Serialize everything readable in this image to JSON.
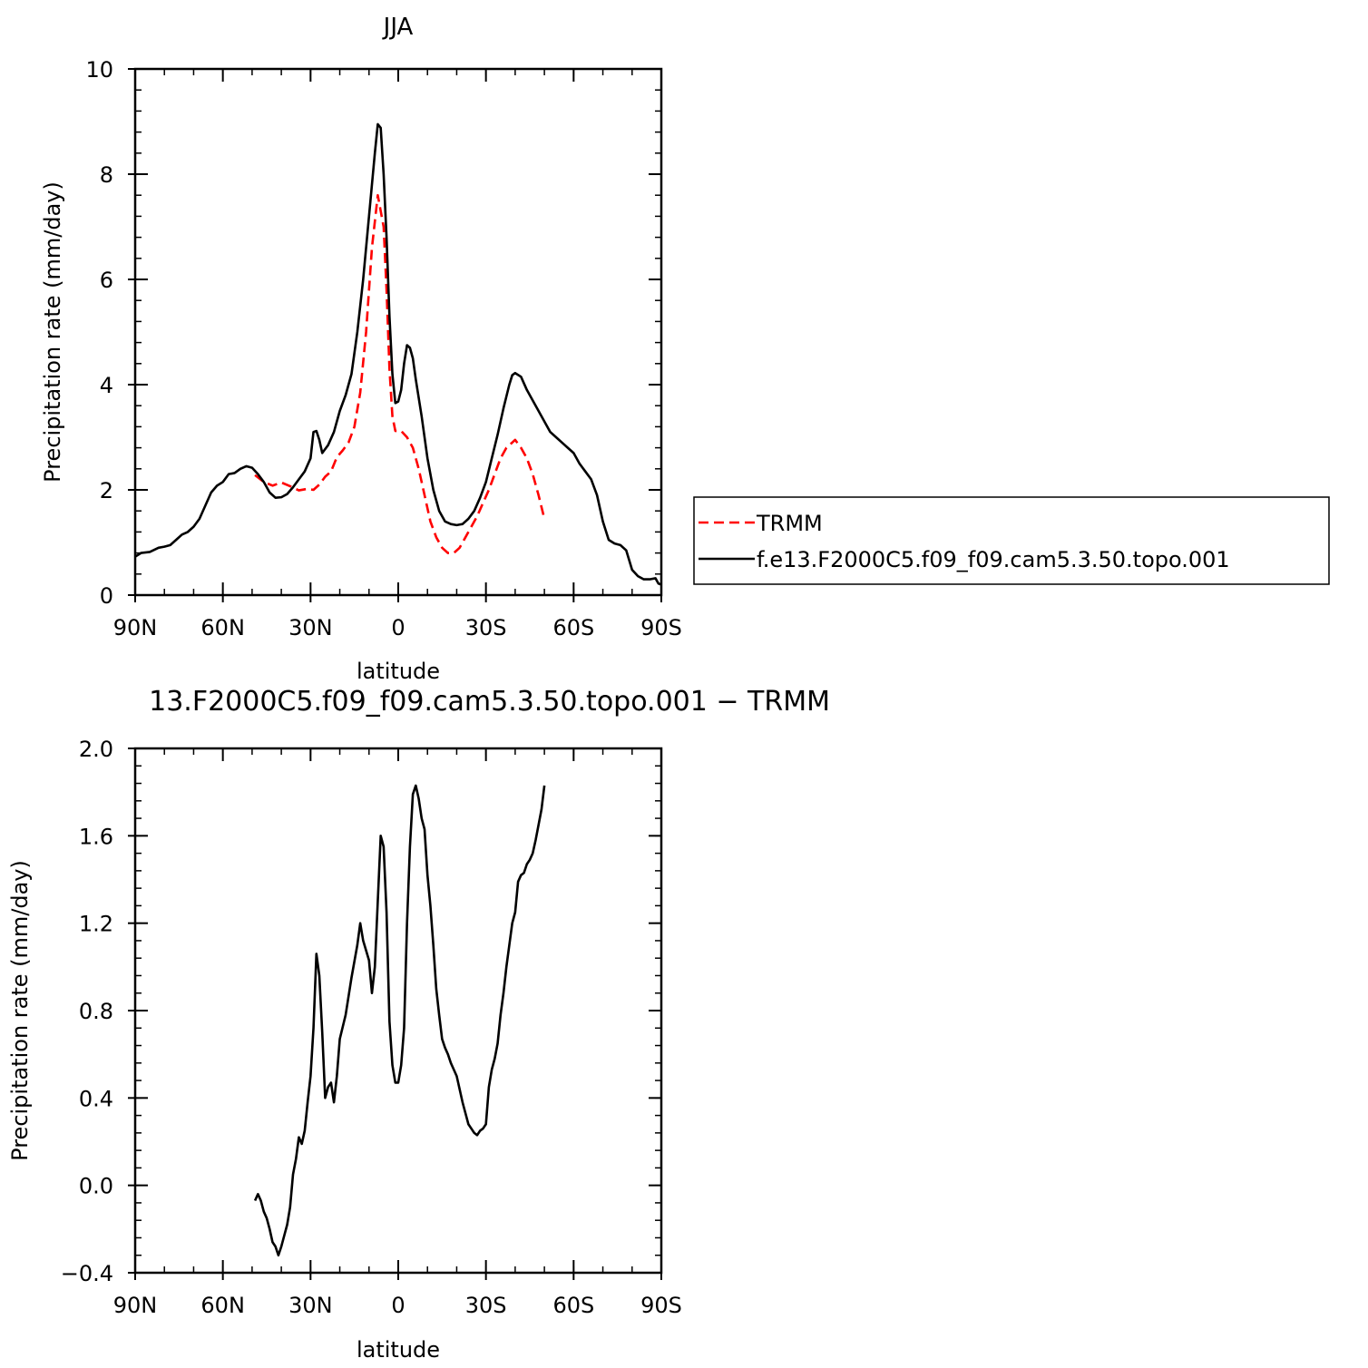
{
  "chart_data": [
    {
      "type": "line",
      "title": "JJA",
      "xlabel": "latitude",
      "ylabel": "Precipitation rate (mm/day)",
      "xlim": [
        -90,
        90
      ],
      "ylim": [
        0,
        10
      ],
      "xticks": [
        {
          "value": -90,
          "label": "90N"
        },
        {
          "value": -60,
          "label": "60N"
        },
        {
          "value": -30,
          "label": "30N"
        },
        {
          "value": 0,
          "label": "0"
        },
        {
          "value": 30,
          "label": "30S"
        },
        {
          "value": 60,
          "label": "60S"
        },
        {
          "value": 90,
          "label": "90S"
        }
      ],
      "yticks": [
        {
          "value": 0,
          "label": "0"
        },
        {
          "value": 2,
          "label": "2"
        },
        {
          "value": 4,
          "label": "4"
        },
        {
          "value": 6,
          "label": "6"
        },
        {
          "value": 8,
          "label": "8"
        },
        {
          "value": 10,
          "label": "10"
        }
      ],
      "legend": {
        "placement": "right"
      },
      "series": [
        {
          "name": "TRMM",
          "color": "#ff0000",
          "style": "dashed",
          "points": [
            [
              -49,
              2.28
            ],
            [
              -46,
              2.15
            ],
            [
              -43,
              2.08
            ],
            [
              -40,
              2.14
            ],
            [
              -37,
              2.07
            ],
            [
              -34,
              1.99
            ],
            [
              -31,
              2.02
            ],
            [
              -29,
              2.0
            ],
            [
              -27,
              2.1
            ],
            [
              -25,
              2.25
            ],
            [
              -23,
              2.35
            ],
            [
              -21,
              2.62
            ],
            [
              -19,
              2.75
            ],
            [
              -17,
              2.9
            ],
            [
              -15,
              3.2
            ],
            [
              -13,
              3.85
            ],
            [
              -11,
              5.0
            ],
            [
              -9,
              6.6
            ],
            [
              -7,
              7.6
            ],
            [
              -5,
              7.0
            ],
            [
              -4,
              5.8
            ],
            [
              -3,
              4.3
            ],
            [
              -2,
              3.4
            ],
            [
              -1,
              3.12
            ],
            [
              1,
              3.12
            ],
            [
              3,
              3.0
            ],
            [
              5,
              2.8
            ],
            [
              7,
              2.4
            ],
            [
              9,
              1.9
            ],
            [
              11,
              1.4
            ],
            [
              13,
              1.1
            ],
            [
              15,
              0.9
            ],
            [
              17,
              0.8
            ],
            [
              19,
              0.8
            ],
            [
              21,
              0.9
            ],
            [
              23,
              1.1
            ],
            [
              25,
              1.3
            ],
            [
              27,
              1.5
            ],
            [
              29,
              1.75
            ],
            [
              31,
              2.0
            ],
            [
              33,
              2.3
            ],
            [
              35,
              2.6
            ],
            [
              37,
              2.8
            ],
            [
              39,
              2.9
            ],
            [
              40,
              2.95
            ],
            [
              42,
              2.8
            ],
            [
              44,
              2.6
            ],
            [
              46,
              2.3
            ],
            [
              48,
              1.9
            ],
            [
              50,
              1.45
            ]
          ]
        },
        {
          "name": "f.e13.F2000C5.f09_f09.cam5.3.50.topo.001",
          "color": "#000000",
          "style": "solid",
          "points": [
            [
              -90,
              0.73
            ],
            [
              -88,
              0.8
            ],
            [
              -85,
              0.82
            ],
            [
              -82,
              0.9
            ],
            [
              -80,
              0.92
            ],
            [
              -78,
              0.95
            ],
            [
              -76,
              1.05
            ],
            [
              -74,
              1.15
            ],
            [
              -72,
              1.2
            ],
            [
              -70,
              1.3
            ],
            [
              -68,
              1.45
            ],
            [
              -66,
              1.7
            ],
            [
              -64,
              1.95
            ],
            [
              -62,
              2.08
            ],
            [
              -60,
              2.15
            ],
            [
              -58,
              2.3
            ],
            [
              -56,
              2.32
            ],
            [
              -54,
              2.4
            ],
            [
              -52,
              2.45
            ],
            [
              -50,
              2.42
            ],
            [
              -48,
              2.3
            ],
            [
              -46,
              2.15
            ],
            [
              -44,
              1.95
            ],
            [
              -42,
              1.85
            ],
            [
              -40,
              1.86
            ],
            [
              -38,
              1.92
            ],
            [
              -36,
              2.05
            ],
            [
              -34,
              2.2
            ],
            [
              -32,
              2.35
            ],
            [
              -30,
              2.6
            ],
            [
              -29,
              3.1
            ],
            [
              -28,
              3.12
            ],
            [
              -27,
              2.95
            ],
            [
              -26,
              2.7
            ],
            [
              -24,
              2.85
            ],
            [
              -22,
              3.1
            ],
            [
              -20,
              3.5
            ],
            [
              -18,
              3.8
            ],
            [
              -16,
              4.2
            ],
            [
              -14,
              5.0
            ],
            [
              -12,
              6.0
            ],
            [
              -10,
              7.2
            ],
            [
              -8,
              8.4
            ],
            [
              -7,
              8.95
            ],
            [
              -6,
              8.88
            ],
            [
              -5,
              8.0
            ],
            [
              -4,
              6.8
            ],
            [
              -3,
              5.3
            ],
            [
              -2,
              4.2
            ],
            [
              -1,
              3.65
            ],
            [
              0,
              3.68
            ],
            [
              1,
              3.9
            ],
            [
              2,
              4.4
            ],
            [
              3,
              4.75
            ],
            [
              4,
              4.7
            ],
            [
              5,
              4.5
            ],
            [
              6,
              4.1
            ],
            [
              8,
              3.4
            ],
            [
              10,
              2.6
            ],
            [
              12,
              2.0
            ],
            [
              14,
              1.6
            ],
            [
              16,
              1.4
            ],
            [
              18,
              1.35
            ],
            [
              20,
              1.33
            ],
            [
              22,
              1.35
            ],
            [
              24,
              1.45
            ],
            [
              26,
              1.6
            ],
            [
              28,
              1.85
            ],
            [
              30,
              2.15
            ],
            [
              32,
              2.6
            ],
            [
              34,
              3.05
            ],
            [
              36,
              3.55
            ],
            [
              38,
              4.0
            ],
            [
              39,
              4.18
            ],
            [
              40,
              4.22
            ],
            [
              42,
              4.15
            ],
            [
              44,
              3.9
            ],
            [
              46,
              3.7
            ],
            [
              48,
              3.5
            ],
            [
              50,
              3.3
            ],
            [
              52,
              3.1
            ],
            [
              54,
              3.0
            ],
            [
              56,
              2.9
            ],
            [
              58,
              2.8
            ],
            [
              60,
              2.7
            ],
            [
              62,
              2.5
            ],
            [
              64,
              2.35
            ],
            [
              66,
              2.2
            ],
            [
              68,
              1.9
            ],
            [
              70,
              1.4
            ],
            [
              72,
              1.05
            ],
            [
              74,
              0.98
            ],
            [
              76,
              0.95
            ],
            [
              78,
              0.85
            ],
            [
              80,
              0.48
            ],
            [
              82,
              0.36
            ],
            [
              84,
              0.3
            ],
            [
              86,
              0.3
            ],
            [
              88,
              0.32
            ],
            [
              89,
              0.22
            ],
            [
              90,
              0.2
            ]
          ]
        }
      ]
    },
    {
      "type": "line",
      "title": "13.F2000C5.f09_f09.cam5.3.50.topo.001 − TRMM",
      "xlabel": "latitude",
      "ylabel": "Precipitation rate (mm/day)",
      "xlim": [
        -90,
        90
      ],
      "ylim": [
        -0.4,
        2.0
      ],
      "xticks": [
        {
          "value": -90,
          "label": "90N"
        },
        {
          "value": -60,
          "label": "60N"
        },
        {
          "value": -30,
          "label": "30N"
        },
        {
          "value": 0,
          "label": "0"
        },
        {
          "value": 30,
          "label": "30S"
        },
        {
          "value": 60,
          "label": "60S"
        },
        {
          "value": 90,
          "label": "90S"
        }
      ],
      "yticks": [
        {
          "value": -0.4,
          "label": "−0.4"
        },
        {
          "value": 0.0,
          "label": "0.0"
        },
        {
          "value": 0.4,
          "label": "0.4"
        },
        {
          "value": 0.8,
          "label": "0.8"
        },
        {
          "value": 1.2,
          "label": "1.2"
        },
        {
          "value": 1.6,
          "label": "1.6"
        },
        {
          "value": 2.0,
          "label": "2.0"
        }
      ],
      "series": [
        {
          "color": "#000000",
          "style": "solid",
          "points": [
            [
              -49,
              -0.07
            ],
            [
              -48,
              -0.04
            ],
            [
              -47,
              -0.07
            ],
            [
              -46,
              -0.12
            ],
            [
              -45,
              -0.15
            ],
            [
              -44,
              -0.2
            ],
            [
              -43,
              -0.26
            ],
            [
              -42,
              -0.28
            ],
            [
              -41,
              -0.32
            ],
            [
              -40,
              -0.28
            ],
            [
              -39,
              -0.23
            ],
            [
              -38,
              -0.18
            ],
            [
              -37,
              -0.1
            ],
            [
              -36,
              0.05
            ],
            [
              -35,
              0.12
            ],
            [
              -34,
              0.22
            ],
            [
              -33,
              0.19
            ],
            [
              -32,
              0.25
            ],
            [
              -31,
              0.38
            ],
            [
              -30,
              0.5
            ],
            [
              -29,
              0.72
            ],
            [
              -28,
              1.06
            ],
            [
              -27,
              0.96
            ],
            [
              -26,
              0.7
            ],
            [
              -25,
              0.4
            ],
            [
              -24,
              0.45
            ],
            [
              -23,
              0.47
            ],
            [
              -22,
              0.38
            ],
            [
              -21,
              0.5
            ],
            [
              -20,
              0.67
            ],
            [
              -18,
              0.78
            ],
            [
              -16,
              0.95
            ],
            [
              -14,
              1.1
            ],
            [
              -13,
              1.2
            ],
            [
              -12,
              1.12
            ],
            [
              -10,
              1.03
            ],
            [
              -9,
              0.88
            ],
            [
              -8,
              1.0
            ],
            [
              -7,
              1.3
            ],
            [
              -6,
              1.6
            ],
            [
              -5,
              1.55
            ],
            [
              -4,
              1.25
            ],
            [
              -3,
              0.75
            ],
            [
              -2,
              0.55
            ],
            [
              -1,
              0.47
            ],
            [
              0,
              0.47
            ],
            [
              1,
              0.55
            ],
            [
              2,
              0.72
            ],
            [
              3,
              1.2
            ],
            [
              4,
              1.55
            ],
            [
              5,
              1.79
            ],
            [
              6,
              1.83
            ],
            [
              7,
              1.77
            ],
            [
              8,
              1.68
            ],
            [
              9,
              1.63
            ],
            [
              10,
              1.42
            ],
            [
              11,
              1.28
            ],
            [
              12,
              1.1
            ],
            [
              13,
              0.9
            ],
            [
              14,
              0.78
            ],
            [
              15,
              0.67
            ],
            [
              16,
              0.63
            ],
            [
              17,
              0.6
            ],
            [
              18,
              0.56
            ],
            [
              19,
              0.53
            ],
            [
              20,
              0.5
            ],
            [
              21,
              0.44
            ],
            [
              22,
              0.38
            ],
            [
              23,
              0.33
            ],
            [
              24,
              0.28
            ],
            [
              25,
              0.26
            ],
            [
              26,
              0.24
            ],
            [
              27,
              0.23
            ],
            [
              28,
              0.25
            ],
            [
              29,
              0.26
            ],
            [
              30,
              0.28
            ],
            [
              31,
              0.45
            ],
            [
              32,
              0.53
            ],
            [
              33,
              0.58
            ],
            [
              34,
              0.65
            ],
            [
              35,
              0.78
            ],
            [
              36,
              0.88
            ],
            [
              37,
              1.0
            ],
            [
              38,
              1.1
            ],
            [
              39,
              1.2
            ],
            [
              40,
              1.25
            ],
            [
              41,
              1.39
            ],
            [
              42,
              1.42
            ],
            [
              43,
              1.43
            ],
            [
              44,
              1.47
            ],
            [
              45,
              1.49
            ],
            [
              46,
              1.52
            ],
            [
              47,
              1.58
            ],
            [
              48,
              1.65
            ],
            [
              49,
              1.72
            ],
            [
              50,
              1.83
            ]
          ]
        }
      ]
    }
  ]
}
